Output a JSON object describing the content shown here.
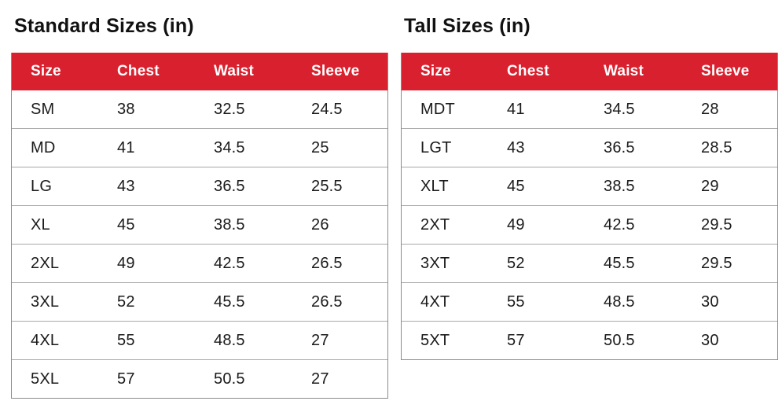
{
  "colors": {
    "header_background": "#D9202E",
    "header_text": "#FFFFFF",
    "body_text": "#1A1A1A",
    "row_border": "#A8A8A8",
    "table_border": "#8C8C8C",
    "page_background": "#FFFFFF"
  },
  "chart_data": [
    {
      "type": "table",
      "title": "Standard Sizes (in)",
      "columns": [
        "Size",
        "Chest",
        "Waist",
        "Sleeve"
      ],
      "rows": [
        [
          "SM",
          "38",
          "32.5",
          "24.5"
        ],
        [
          "MD",
          "41",
          "34.5",
          "25"
        ],
        [
          "LG",
          "43",
          "36.5",
          "25.5"
        ],
        [
          "XL",
          "45",
          "38.5",
          "26"
        ],
        [
          "2XL",
          "49",
          "42.5",
          "26.5"
        ],
        [
          "3XL",
          "52",
          "45.5",
          "26.5"
        ],
        [
          "4XL",
          "55",
          "48.5",
          "27"
        ],
        [
          "5XL",
          "57",
          "50.5",
          "27"
        ]
      ]
    },
    {
      "type": "table",
      "title": "Tall Sizes (in)",
      "columns": [
        "Size",
        "Chest",
        "Waist",
        "Sleeve"
      ],
      "rows": [
        [
          "MDT",
          "41",
          "34.5",
          "28"
        ],
        [
          "LGT",
          "43",
          "36.5",
          "28.5"
        ],
        [
          "XLT",
          "45",
          "38.5",
          "29"
        ],
        [
          "2XT",
          "49",
          "42.5",
          "29.5"
        ],
        [
          "3XT",
          "52",
          "45.5",
          "29.5"
        ],
        [
          "4XT",
          "55",
          "48.5",
          "30"
        ],
        [
          "5XT",
          "57",
          "50.5",
          "30"
        ]
      ]
    }
  ]
}
